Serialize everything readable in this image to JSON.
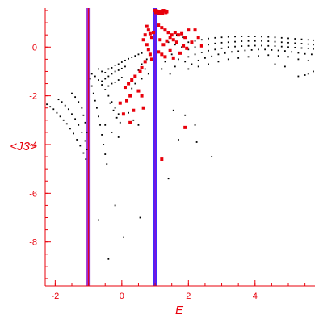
{
  "chart_data": {
    "type": "scatter",
    "title": "",
    "xlabel": "E",
    "ylabel": "<J3>",
    "xlim": [
      -2.3,
      5.8
    ],
    "ylim": [
      -9.8,
      1.6
    ],
    "x_ticks": [
      -2,
      0,
      2,
      4
    ],
    "x_tick_labels": [
      "-2",
      "0",
      "2",
      "4"
    ],
    "y_ticks": [
      0,
      -2,
      -4,
      -6,
      -8
    ],
    "y_tick_labels": [
      "0",
      "-2",
      "-4",
      "-6",
      "-8"
    ],
    "x_minor_step": 0.5,
    "y_minor_step": 0.5,
    "grid": false,
    "legend": "none",
    "vertical_lines": [
      {
        "x": -1.0,
        "color": "#9b30d0",
        "inner_color": "#e8000b"
      },
      {
        "x": 1.0,
        "color": "#3d2cff",
        "inner_color": "#b000c0"
      }
    ],
    "series": [
      {
        "color": "#000000",
        "marker": "dot",
        "points": [
          [
            -2.25,
            -2.35
          ],
          [
            -2.15,
            -2.45
          ],
          [
            -2.05,
            -2.55
          ],
          [
            -1.95,
            -2.7
          ],
          [
            -1.85,
            -2.85
          ],
          [
            -1.75,
            -3.0
          ],
          [
            -1.65,
            -3.15
          ],
          [
            -1.55,
            -3.35
          ],
          [
            -1.45,
            -3.55
          ],
          [
            -1.35,
            -3.8
          ],
          [
            -1.25,
            -4.05
          ],
          [
            -1.15,
            -4.35
          ],
          [
            -1.08,
            -4.6
          ],
          [
            -1.9,
            -2.15
          ],
          [
            -1.8,
            -2.25
          ],
          [
            -1.7,
            -2.4
          ],
          [
            -1.6,
            -2.55
          ],
          [
            -1.5,
            -2.75
          ],
          [
            -1.4,
            -2.95
          ],
          [
            -1.3,
            -3.2
          ],
          [
            -1.2,
            -3.5
          ],
          [
            -1.1,
            -3.85
          ],
          [
            -1.05,
            -4.2
          ],
          [
            -1.5,
            -1.9
          ],
          [
            -1.4,
            -2.05
          ],
          [
            -1.3,
            -2.25
          ],
          [
            -1.2,
            -2.5
          ],
          [
            -1.15,
            -2.8
          ],
          [
            -1.1,
            -3.1
          ],
          [
            -1.05,
            -3.5
          ],
          [
            -0.95,
            -1.3
          ],
          [
            -0.9,
            -1.6
          ],
          [
            -0.85,
            -1.9
          ],
          [
            -0.8,
            -2.2
          ],
          [
            -0.75,
            -2.5
          ],
          [
            -0.7,
            -2.85
          ],
          [
            -0.65,
            -3.2
          ],
          [
            -0.6,
            -3.6
          ],
          [
            -0.55,
            -4.0
          ],
          [
            -0.5,
            -4.4
          ],
          [
            -0.45,
            -4.8
          ],
          [
            -0.9,
            -1.1
          ],
          [
            -0.8,
            -1.2
          ],
          [
            -0.7,
            -1.35
          ],
          [
            -0.6,
            -1.55
          ],
          [
            -0.5,
            -1.75
          ],
          [
            -0.4,
            -2.0
          ],
          [
            -0.3,
            -2.25
          ],
          [
            -0.2,
            -2.5
          ],
          [
            -0.1,
            -2.75
          ],
          [
            -0.7,
            -0.9
          ],
          [
            -0.6,
            -1.0
          ],
          [
            -0.5,
            -1.05
          ],
          [
            -0.4,
            -0.9
          ],
          [
            -0.3,
            -0.85
          ],
          [
            -0.2,
            -0.75
          ],
          [
            -0.1,
            -0.7
          ],
          [
            0.0,
            -0.62
          ],
          [
            0.1,
            -0.55
          ],
          [
            0.2,
            -0.48
          ],
          [
            0.3,
            -0.42
          ],
          [
            0.4,
            -0.36
          ],
          [
            0.5,
            -0.3
          ],
          [
            0.6,
            -0.25
          ],
          [
            -0.6,
            -1.4
          ],
          [
            -0.5,
            -1.3
          ],
          [
            -0.4,
            -1.2
          ],
          [
            -0.3,
            -1.1
          ],
          [
            -0.2,
            -1.0
          ],
          [
            -0.1,
            -0.95
          ],
          [
            0.0,
            -0.88
          ],
          [
            0.1,
            -0.8
          ],
          [
            -0.4,
            -1.6
          ],
          [
            -0.3,
            -1.5
          ],
          [
            -0.2,
            -1.45
          ],
          [
            -0.1,
            -1.35
          ],
          [
            0.0,
            -1.25
          ],
          [
            -0.5,
            -3.2
          ],
          [
            -0.3,
            -3.5
          ],
          [
            -0.1,
            -3.7
          ],
          [
            0.2,
            -2.7
          ],
          [
            0.35,
            -3.0
          ],
          [
            0.5,
            -3.2
          ],
          [
            -0.35,
            -2.3
          ],
          [
            -0.25,
            -2.6
          ],
          [
            -0.15,
            -2.9
          ],
          [
            -0.05,
            -3.1
          ],
          [
            -0.2,
            -6.5
          ],
          [
            -0.4,
            -8.7
          ],
          [
            -0.7,
            -7.1
          ],
          [
            0.05,
            -7.8
          ],
          [
            0.55,
            -7.0
          ],
          [
            1.4,
            -5.4
          ],
          [
            1.7,
            -3.8
          ],
          [
            2.25,
            -3.9
          ],
          [
            2.2,
            -3.2
          ],
          [
            2.7,
            -4.5
          ],
          [
            1.9,
            -2.8
          ],
          [
            1.55,
            -2.6
          ],
          [
            2.0,
            0.2
          ],
          [
            2.2,
            0.25
          ],
          [
            2.4,
            0.3
          ],
          [
            2.6,
            0.35
          ],
          [
            2.8,
            0.38
          ],
          [
            3.0,
            0.4
          ],
          [
            3.2,
            0.42
          ],
          [
            3.4,
            0.43
          ],
          [
            3.6,
            0.44
          ],
          [
            3.8,
            0.44
          ],
          [
            4.0,
            0.44
          ],
          [
            4.2,
            0.43
          ],
          [
            4.4,
            0.42
          ],
          [
            4.6,
            0.4
          ],
          [
            4.8,
            0.38
          ],
          [
            5.0,
            0.36
          ],
          [
            5.2,
            0.34
          ],
          [
            5.4,
            0.32
          ],
          [
            5.6,
            0.3
          ],
          [
            5.75,
            0.28
          ],
          [
            2.0,
            -0.1
          ],
          [
            2.2,
            0.0
          ],
          [
            2.4,
            0.05
          ],
          [
            2.6,
            0.1
          ],
          [
            2.8,
            0.15
          ],
          [
            3.0,
            0.18
          ],
          [
            3.2,
            0.2
          ],
          [
            3.4,
            0.22
          ],
          [
            3.6,
            0.24
          ],
          [
            3.8,
            0.25
          ],
          [
            4.0,
            0.25
          ],
          [
            4.2,
            0.25
          ],
          [
            4.4,
            0.24
          ],
          [
            4.6,
            0.22
          ],
          [
            4.8,
            0.2
          ],
          [
            5.0,
            0.18
          ],
          [
            5.2,
            0.16
          ],
          [
            5.4,
            0.14
          ],
          [
            5.6,
            0.12
          ],
          [
            5.75,
            0.1
          ],
          [
            2.0,
            -0.4
          ],
          [
            2.2,
            -0.3
          ],
          [
            2.4,
            -0.22
          ],
          [
            2.6,
            -0.15
          ],
          [
            2.8,
            -0.1
          ],
          [
            3.0,
            -0.05
          ],
          [
            3.2,
            0.0
          ],
          [
            3.4,
            0.02
          ],
          [
            3.6,
            0.04
          ],
          [
            3.8,
            0.05
          ],
          [
            4.0,
            0.06
          ],
          [
            4.2,
            0.06
          ],
          [
            4.4,
            0.05
          ],
          [
            4.6,
            0.04
          ],
          [
            4.8,
            0.02
          ],
          [
            5.0,
            0.0
          ],
          [
            5.2,
            -0.02
          ],
          [
            5.4,
            -0.04
          ],
          [
            5.6,
            -0.06
          ],
          [
            5.75,
            -0.08
          ],
          [
            2.1,
            -0.7
          ],
          [
            2.3,
            -0.55
          ],
          [
            2.5,
            -0.45
          ],
          [
            2.7,
            -0.38
          ],
          [
            2.9,
            -0.3
          ],
          [
            3.1,
            -0.25
          ],
          [
            3.3,
            -0.2
          ],
          [
            3.5,
            -0.17
          ],
          [
            3.7,
            -0.14
          ],
          [
            3.9,
            -0.12
          ],
          [
            4.1,
            -0.1
          ],
          [
            4.3,
            -0.1
          ],
          [
            4.5,
            -0.12
          ],
          [
            4.7,
            -0.14
          ],
          [
            4.9,
            -0.16
          ],
          [
            5.1,
            -0.2
          ],
          [
            5.3,
            -0.24
          ],
          [
            5.5,
            -0.28
          ],
          [
            5.7,
            -0.3
          ],
          [
            2.0,
            -0.9
          ],
          [
            2.3,
            -0.8
          ],
          [
            2.6,
            -0.7
          ],
          [
            2.9,
            -0.6
          ],
          [
            3.2,
            -0.5
          ],
          [
            3.5,
            -0.45
          ],
          [
            3.8,
            -0.4
          ],
          [
            4.1,
            -0.36
          ],
          [
            4.4,
            -0.33
          ],
          [
            4.7,
            -0.36
          ],
          [
            5.0,
            -0.4
          ],
          [
            5.3,
            -0.5
          ],
          [
            5.6,
            -0.55
          ],
          [
            5.3,
            -1.2
          ],
          [
            5.5,
            -1.15
          ],
          [
            5.6,
            -1.1
          ],
          [
            5.75,
            -1.0
          ],
          [
            4.9,
            -0.8
          ],
          [
            4.6,
            -0.7
          ],
          [
            1.4,
            0.2
          ],
          [
            1.6,
            0.1
          ],
          [
            1.8,
            0.0
          ],
          [
            1.5,
            -0.3
          ],
          [
            1.7,
            -0.5
          ],
          [
            1.3,
            -0.6
          ],
          [
            1.6,
            -0.8
          ],
          [
            1.9,
            -0.6
          ],
          [
            1.2,
            -0.9
          ],
          [
            1.45,
            -1.1
          ],
          [
            1.65,
            0.5
          ],
          [
            1.85,
            0.4
          ],
          [
            0.6,
            -0.7
          ],
          [
            0.7,
            -0.9
          ],
          [
            0.8,
            -1.1
          ],
          [
            0.6,
            -1.3
          ],
          [
            0.4,
            -1.5
          ],
          [
            0.3,
            -1.7
          ],
          [
            0.5,
            -0.95
          ],
          [
            0.75,
            -0.5
          ],
          [
            0.85,
            -0.3
          ]
        ]
      },
      {
        "color": "#e8000b",
        "marker": "square",
        "points": [
          [
            1.0,
            1.5
          ],
          [
            1.05,
            1.48
          ],
          [
            1.1,
            1.45
          ],
          [
            1.15,
            1.45
          ],
          [
            1.2,
            1.47
          ],
          [
            1.25,
            1.5
          ],
          [
            1.3,
            1.48
          ],
          [
            1.35,
            1.45
          ],
          [
            1.02,
            1.42
          ],
          [
            1.12,
            1.4
          ],
          [
            1.22,
            1.38
          ],
          [
            1.32,
            1.42
          ],
          [
            0.75,
            0.85
          ],
          [
            0.8,
            0.7
          ],
          [
            0.85,
            0.55
          ],
          [
            0.9,
            0.4
          ],
          [
            0.95,
            0.6
          ],
          [
            0.7,
            0.5
          ],
          [
            0.65,
            0.3
          ],
          [
            0.75,
            0.1
          ],
          [
            0.8,
            -0.1
          ],
          [
            0.85,
            -0.3
          ],
          [
            0.9,
            -0.5
          ],
          [
            0.7,
            -0.6
          ],
          [
            0.6,
            -0.85
          ],
          [
            0.55,
            -1.0
          ],
          [
            1.1,
            0.9
          ],
          [
            1.2,
            0.8
          ],
          [
            1.3,
            0.7
          ],
          [
            1.4,
            0.6
          ],
          [
            1.5,
            0.5
          ],
          [
            1.6,
            0.6
          ],
          [
            1.7,
            0.5
          ],
          [
            1.8,
            0.55
          ],
          [
            1.9,
            0.4
          ],
          [
            2.0,
            0.7
          ],
          [
            2.2,
            0.7
          ],
          [
            2.3,
            0.4
          ],
          [
            1.55,
            0.3
          ],
          [
            1.65,
            0.2
          ],
          [
            1.45,
            0.4
          ],
          [
            1.35,
            0.25
          ],
          [
            1.25,
            0.1
          ],
          [
            1.15,
            0.3
          ],
          [
            1.1,
            -0.2
          ],
          [
            1.2,
            -0.3
          ],
          [
            1.3,
            -0.4
          ],
          [
            1.45,
            -0.15
          ],
          [
            1.55,
            -0.45
          ],
          [
            1.75,
            -0.25
          ],
          [
            1.85,
            0.05
          ],
          [
            1.95,
            -0.05
          ],
          [
            2.1,
            0.2
          ],
          [
            2.4,
            0.05
          ],
          [
            0.4,
            -1.2
          ],
          [
            0.3,
            -1.35
          ],
          [
            0.2,
            -1.5
          ],
          [
            0.1,
            -1.65
          ],
          [
            0.5,
            -1.8
          ],
          [
            0.25,
            -2.0
          ],
          [
            0.15,
            -2.2
          ],
          [
            -0.05,
            -2.3
          ],
          [
            0.35,
            -2.6
          ],
          [
            0.6,
            -2.0
          ],
          [
            0.65,
            -2.5
          ],
          [
            0.25,
            -3.1
          ],
          [
            0.05,
            -2.75
          ],
          [
            1.9,
            -3.3
          ],
          [
            1.2,
            -4.6
          ]
        ]
      }
    ]
  }
}
